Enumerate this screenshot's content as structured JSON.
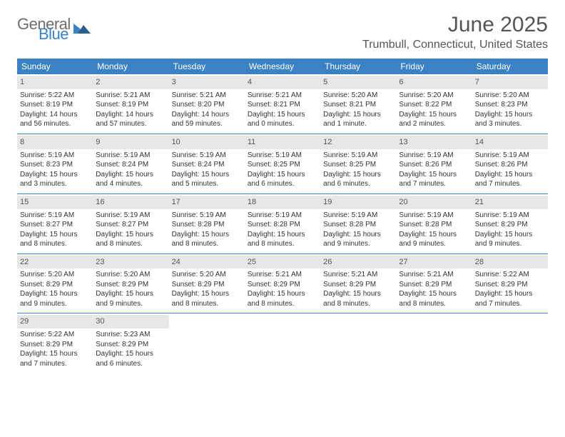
{
  "logo": {
    "text1": "General",
    "text2": "Blue"
  },
  "title": "June 2025",
  "location": "Trumbull, Connecticut, United States",
  "colors": {
    "header_bg": "#3b82c4",
    "header_text": "#ffffff",
    "daynum_bg": "#e7e7e7",
    "body_text": "#333333",
    "muted_text": "#555555",
    "rule": "#3b82c4",
    "page_bg": "#ffffff"
  },
  "typography": {
    "title_fontsize": 30,
    "location_fontsize": 16,
    "header_fontsize": 12,
    "daynum_fontsize": 11,
    "detail_fontsize": 10
  },
  "dayNames": [
    "Sunday",
    "Monday",
    "Tuesday",
    "Wednesday",
    "Thursday",
    "Friday",
    "Saturday"
  ],
  "weeks": [
    [
      {
        "day": "1",
        "sunrise": "Sunrise: 5:22 AM",
        "sunset": "Sunset: 8:19 PM",
        "daylight1": "Daylight: 14 hours",
        "daylight2": "and 56 minutes."
      },
      {
        "day": "2",
        "sunrise": "Sunrise: 5:21 AM",
        "sunset": "Sunset: 8:19 PM",
        "daylight1": "Daylight: 14 hours",
        "daylight2": "and 57 minutes."
      },
      {
        "day": "3",
        "sunrise": "Sunrise: 5:21 AM",
        "sunset": "Sunset: 8:20 PM",
        "daylight1": "Daylight: 14 hours",
        "daylight2": "and 59 minutes."
      },
      {
        "day": "4",
        "sunrise": "Sunrise: 5:21 AM",
        "sunset": "Sunset: 8:21 PM",
        "daylight1": "Daylight: 15 hours",
        "daylight2": "and 0 minutes."
      },
      {
        "day": "5",
        "sunrise": "Sunrise: 5:20 AM",
        "sunset": "Sunset: 8:21 PM",
        "daylight1": "Daylight: 15 hours",
        "daylight2": "and 1 minute."
      },
      {
        "day": "6",
        "sunrise": "Sunrise: 5:20 AM",
        "sunset": "Sunset: 8:22 PM",
        "daylight1": "Daylight: 15 hours",
        "daylight2": "and 2 minutes."
      },
      {
        "day": "7",
        "sunrise": "Sunrise: 5:20 AM",
        "sunset": "Sunset: 8:23 PM",
        "daylight1": "Daylight: 15 hours",
        "daylight2": "and 3 minutes."
      }
    ],
    [
      {
        "day": "8",
        "sunrise": "Sunrise: 5:19 AM",
        "sunset": "Sunset: 8:23 PM",
        "daylight1": "Daylight: 15 hours",
        "daylight2": "and 3 minutes."
      },
      {
        "day": "9",
        "sunrise": "Sunrise: 5:19 AM",
        "sunset": "Sunset: 8:24 PM",
        "daylight1": "Daylight: 15 hours",
        "daylight2": "and 4 minutes."
      },
      {
        "day": "10",
        "sunrise": "Sunrise: 5:19 AM",
        "sunset": "Sunset: 8:24 PM",
        "daylight1": "Daylight: 15 hours",
        "daylight2": "and 5 minutes."
      },
      {
        "day": "11",
        "sunrise": "Sunrise: 5:19 AM",
        "sunset": "Sunset: 8:25 PM",
        "daylight1": "Daylight: 15 hours",
        "daylight2": "and 6 minutes."
      },
      {
        "day": "12",
        "sunrise": "Sunrise: 5:19 AM",
        "sunset": "Sunset: 8:25 PM",
        "daylight1": "Daylight: 15 hours",
        "daylight2": "and 6 minutes."
      },
      {
        "day": "13",
        "sunrise": "Sunrise: 5:19 AM",
        "sunset": "Sunset: 8:26 PM",
        "daylight1": "Daylight: 15 hours",
        "daylight2": "and 7 minutes."
      },
      {
        "day": "14",
        "sunrise": "Sunrise: 5:19 AM",
        "sunset": "Sunset: 8:26 PM",
        "daylight1": "Daylight: 15 hours",
        "daylight2": "and 7 minutes."
      }
    ],
    [
      {
        "day": "15",
        "sunrise": "Sunrise: 5:19 AM",
        "sunset": "Sunset: 8:27 PM",
        "daylight1": "Daylight: 15 hours",
        "daylight2": "and 8 minutes."
      },
      {
        "day": "16",
        "sunrise": "Sunrise: 5:19 AM",
        "sunset": "Sunset: 8:27 PM",
        "daylight1": "Daylight: 15 hours",
        "daylight2": "and 8 minutes."
      },
      {
        "day": "17",
        "sunrise": "Sunrise: 5:19 AM",
        "sunset": "Sunset: 8:28 PM",
        "daylight1": "Daylight: 15 hours",
        "daylight2": "and 8 minutes."
      },
      {
        "day": "18",
        "sunrise": "Sunrise: 5:19 AM",
        "sunset": "Sunset: 8:28 PM",
        "daylight1": "Daylight: 15 hours",
        "daylight2": "and 8 minutes."
      },
      {
        "day": "19",
        "sunrise": "Sunrise: 5:19 AM",
        "sunset": "Sunset: 8:28 PM",
        "daylight1": "Daylight: 15 hours",
        "daylight2": "and 9 minutes."
      },
      {
        "day": "20",
        "sunrise": "Sunrise: 5:19 AM",
        "sunset": "Sunset: 8:28 PM",
        "daylight1": "Daylight: 15 hours",
        "daylight2": "and 9 minutes."
      },
      {
        "day": "21",
        "sunrise": "Sunrise: 5:19 AM",
        "sunset": "Sunset: 8:29 PM",
        "daylight1": "Daylight: 15 hours",
        "daylight2": "and 9 minutes."
      }
    ],
    [
      {
        "day": "22",
        "sunrise": "Sunrise: 5:20 AM",
        "sunset": "Sunset: 8:29 PM",
        "daylight1": "Daylight: 15 hours",
        "daylight2": "and 9 minutes."
      },
      {
        "day": "23",
        "sunrise": "Sunrise: 5:20 AM",
        "sunset": "Sunset: 8:29 PM",
        "daylight1": "Daylight: 15 hours",
        "daylight2": "and 9 minutes."
      },
      {
        "day": "24",
        "sunrise": "Sunrise: 5:20 AM",
        "sunset": "Sunset: 8:29 PM",
        "daylight1": "Daylight: 15 hours",
        "daylight2": "and 8 minutes."
      },
      {
        "day": "25",
        "sunrise": "Sunrise: 5:21 AM",
        "sunset": "Sunset: 8:29 PM",
        "daylight1": "Daylight: 15 hours",
        "daylight2": "and 8 minutes."
      },
      {
        "day": "26",
        "sunrise": "Sunrise: 5:21 AM",
        "sunset": "Sunset: 8:29 PM",
        "daylight1": "Daylight: 15 hours",
        "daylight2": "and 8 minutes."
      },
      {
        "day": "27",
        "sunrise": "Sunrise: 5:21 AM",
        "sunset": "Sunset: 8:29 PM",
        "daylight1": "Daylight: 15 hours",
        "daylight2": "and 8 minutes."
      },
      {
        "day": "28",
        "sunrise": "Sunrise: 5:22 AM",
        "sunset": "Sunset: 8:29 PM",
        "daylight1": "Daylight: 15 hours",
        "daylight2": "and 7 minutes."
      }
    ],
    [
      {
        "day": "29",
        "sunrise": "Sunrise: 5:22 AM",
        "sunset": "Sunset: 8:29 PM",
        "daylight1": "Daylight: 15 hours",
        "daylight2": "and 7 minutes."
      },
      {
        "day": "30",
        "sunrise": "Sunrise: 5:23 AM",
        "sunset": "Sunset: 8:29 PM",
        "daylight1": "Daylight: 15 hours",
        "daylight2": "and 6 minutes."
      },
      null,
      null,
      null,
      null,
      null
    ]
  ]
}
